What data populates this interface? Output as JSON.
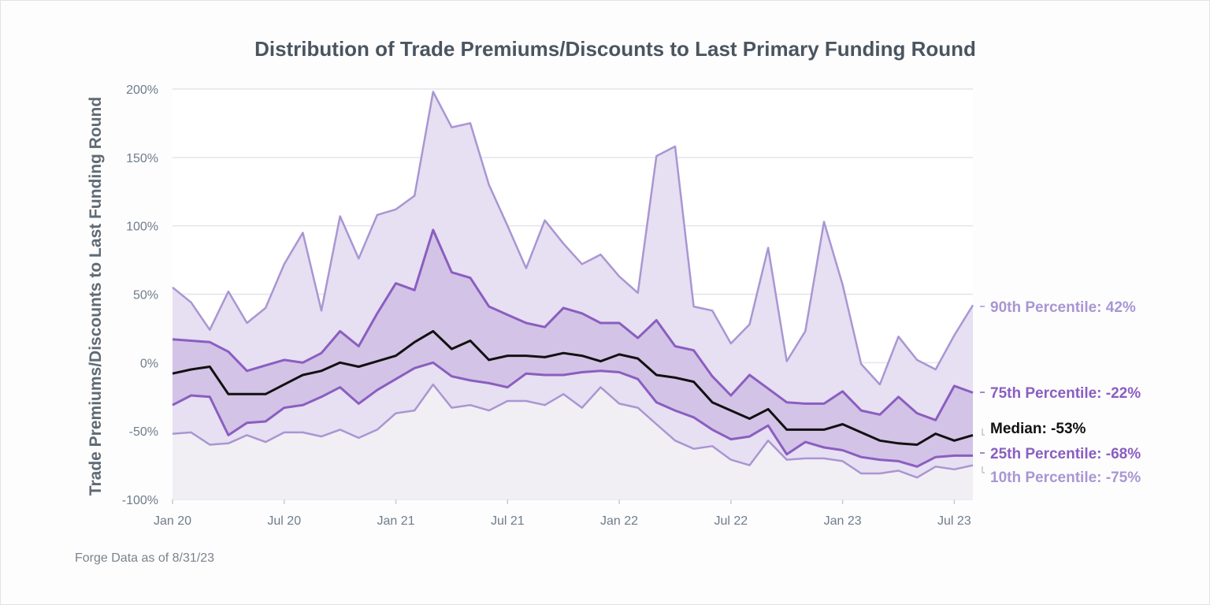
{
  "chart_data": {
    "type": "area",
    "title": "Distribution of Trade Premiums/Discounts to Last Primary Funding Round",
    "ylabel": "Trade Premiums/Discounts to Last Funding Round",
    "xlabel": "",
    "footer": "Forge Data as of 8/31/23",
    "ylim": [
      -100,
      200
    ],
    "y_ticks": [
      {
        "value": 200,
        "label": "200%"
      },
      {
        "value": 150,
        "label": "150%"
      },
      {
        "value": 100,
        "label": "100%"
      },
      {
        "value": 50,
        "label": "50%"
      },
      {
        "value": 0,
        "label": "0%"
      },
      {
        "value": -50,
        "label": "-50%"
      },
      {
        "value": -100,
        "label": "-100%"
      }
    ],
    "x_ticks": [
      "Jan 20",
      "Jul 20",
      "Jan 21",
      "Jul 21",
      "Jan 22",
      "Jul 22",
      "Jan 23",
      "Jul 23"
    ],
    "x": [
      "Jan 20",
      "Feb 20",
      "Mar 20",
      "Apr 20",
      "May 20",
      "Jun 20",
      "Jul 20",
      "Aug 20",
      "Sep 20",
      "Oct 20",
      "Nov 20",
      "Dec 20",
      "Jan 21",
      "Feb 21",
      "Mar 21",
      "Apr 21",
      "May 21",
      "Jun 21",
      "Jul 21",
      "Aug 21",
      "Sep 21",
      "Oct 21",
      "Nov 21",
      "Dec 21",
      "Jan 22",
      "Feb 22",
      "Mar 22",
      "Apr 22",
      "May 22",
      "Jun 22",
      "Jul 22",
      "Aug 22",
      "Sep 22",
      "Oct 22",
      "Nov 22",
      "Dec 22",
      "Jan 23",
      "Feb 23",
      "Mar 23",
      "Apr 23",
      "May 23",
      "Jun 23",
      "Jul 23",
      "Aug 23"
    ],
    "grid": true,
    "legend": "right-end labels",
    "colors": {
      "p90": "#a996d2",
      "p75": "#8a5ec0",
      "median": "#111111",
      "p25": "#8a5ec0",
      "p10": "#a996d2",
      "band_outer": "#e7dff2",
      "band_inner": "#d3c3e6",
      "band_low": "#f1eff4"
    },
    "series": [
      {
        "name": "90th Percentile",
        "end_label": "90th Percentile: 42%",
        "values": [
          55,
          44,
          24,
          52,
          29,
          40,
          72,
          95,
          38,
          107,
          76,
          108,
          112,
          122,
          198,
          172,
          175,
          130,
          100,
          69,
          104,
          87,
          72,
          79,
          63,
          51,
          151,
          158,
          41,
          38,
          14,
          28,
          84,
          1,
          23,
          103,
          57,
          -1,
          -16,
          19,
          2,
          -5,
          20,
          42
        ]
      },
      {
        "name": "75th Percentile",
        "end_label": "75th Percentile: -22%",
        "values": [
          17,
          16,
          15,
          8,
          -6,
          -2,
          2,
          0,
          7,
          23,
          12,
          36,
          58,
          53,
          97,
          66,
          62,
          41,
          35,
          29,
          26,
          40,
          36,
          29,
          29,
          18,
          31,
          12,
          9,
          -10,
          -24,
          -9,
          -19,
          -29,
          -30,
          -30,
          -21,
          -35,
          -38,
          -25,
          -37,
          -42,
          -17,
          -22
        ]
      },
      {
        "name": "Median",
        "end_label": "Median: -53%",
        "values": [
          -8,
          -5,
          -3,
          -23,
          -23,
          -23,
          -16,
          -9,
          -6,
          0,
          -3,
          1,
          5,
          15,
          23,
          10,
          16,
          2,
          5,
          5,
          4,
          7,
          5,
          1,
          6,
          3,
          -9,
          -11,
          -14,
          -29,
          -35,
          -41,
          -34,
          -49,
          -49,
          -49,
          -45,
          -51,
          -57,
          -59,
          -60,
          -52,
          -57,
          -53
        ]
      },
      {
        "name": "25th Percentile",
        "end_label": "25th Percentile: -68%",
        "values": [
          -31,
          -24,
          -25,
          -53,
          -44,
          -43,
          -33,
          -31,
          -25,
          -18,
          -30,
          -20,
          -12,
          -4,
          0,
          -10,
          -13,
          -15,
          -18,
          -8,
          -9,
          -9,
          -7,
          -6,
          -7,
          -12,
          -29,
          -35,
          -40,
          -49,
          -56,
          -54,
          -46,
          -67,
          -58,
          -62,
          -64,
          -69,
          -71,
          -72,
          -76,
          -69,
          -68,
          -68
        ]
      },
      {
        "name": "10th Percentile",
        "end_label": "10th Percentile: -75%",
        "values": [
          -52,
          -51,
          -60,
          -59,
          -53,
          -58,
          -51,
          -51,
          -54,
          -49,
          -55,
          -49,
          -37,
          -35,
          -16,
          -33,
          -31,
          -35,
          -28,
          -28,
          -31,
          -23,
          -33,
          -18,
          -30,
          -33,
          -45,
          -57,
          -63,
          -61,
          -71,
          -75,
          -57,
          -71,
          -70,
          -70,
          -72,
          -81,
          -81,
          -79,
          -84,
          -76,
          -78,
          -75
        ]
      }
    ]
  }
}
